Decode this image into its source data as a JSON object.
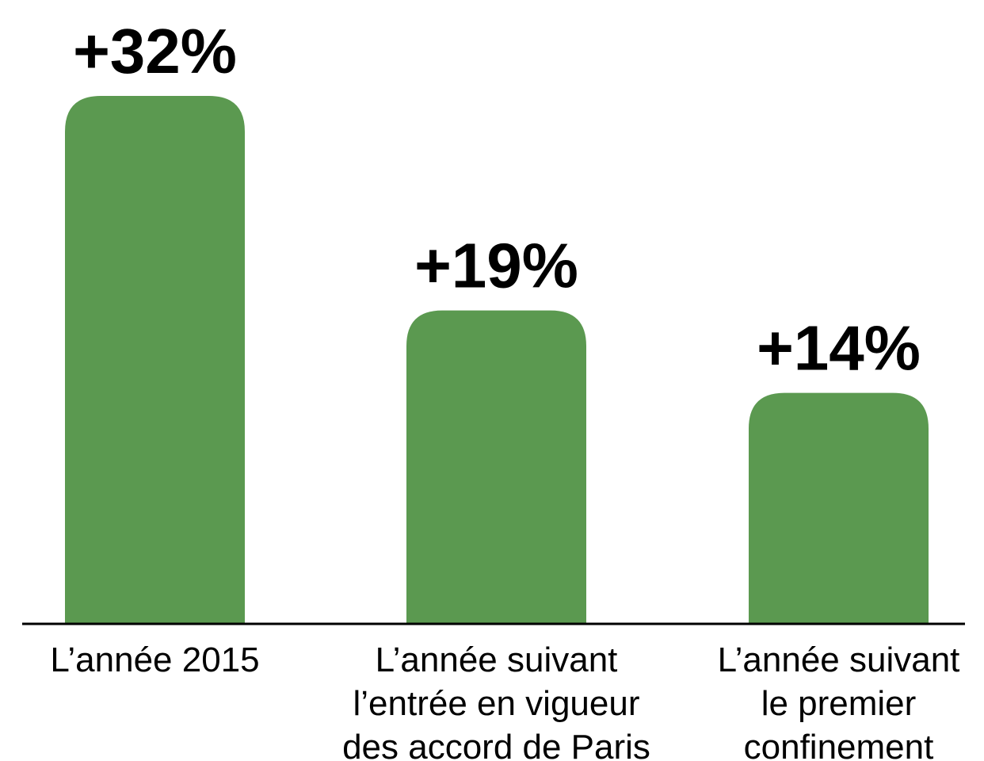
{
  "chart_data": {
    "type": "bar",
    "categories": [
      "L’année 2015",
      "L’année suivant\nl’entrée en vigueur\ndes accord de Paris",
      "L’année suivant\nle premier\nconfinement"
    ],
    "values": [
      32,
      19,
      14
    ],
    "value_labels": [
      "+32%",
      "+19%",
      "+14%"
    ],
    "color": "#5b9950"
  }
}
